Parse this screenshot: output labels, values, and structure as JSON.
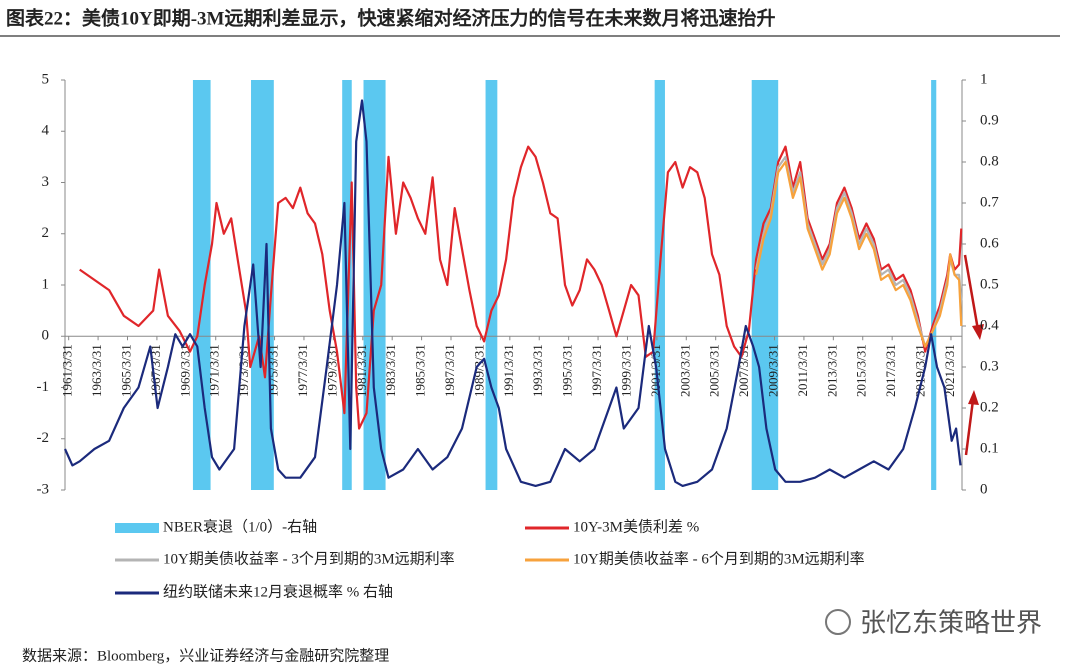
{
  "chart_data": {
    "type": "line",
    "title": "图表22：美债10Y即期-3M远期利差显示，快速紧缩对经济压力的信号在未来数月将迅速抬升",
    "source": "数据来源：Bloomberg，兴业证券经济与金融研究院整理",
    "watermark": "张忆东策略世界",
    "legend": "bottom",
    "xlim": [
      1961,
      2022
    ],
    "xticks": [
      {
        "value": 1961.25,
        "label": "1961/3/31"
      },
      {
        "value": 1963.25,
        "label": "1963/3/31"
      },
      {
        "value": 1965.25,
        "label": "1965/3/31"
      },
      {
        "value": 1967.25,
        "label": "1967/3/31"
      },
      {
        "value": 1969.25,
        "label": "1969/3/31"
      },
      {
        "value": 1971.25,
        "label": "1971/3/31"
      },
      {
        "value": 1973.25,
        "label": "1973/3/31"
      },
      {
        "value": 1975.25,
        "label": "1975/3/31"
      },
      {
        "value": 1977.25,
        "label": "1977/3/31"
      },
      {
        "value": 1979.25,
        "label": "1979/3/31"
      },
      {
        "value": 1981.25,
        "label": "1981/3/31"
      },
      {
        "value": 1983.25,
        "label": "1983/3/31"
      },
      {
        "value": 1985.25,
        "label": "1985/3/31"
      },
      {
        "value": 1987.25,
        "label": "1987/3/31"
      },
      {
        "value": 1989.25,
        "label": "1989/3/31"
      },
      {
        "value": 1991.25,
        "label": "1991/3/31"
      },
      {
        "value": 1993.25,
        "label": "1993/3/31"
      },
      {
        "value": 1995.25,
        "label": "1995/3/31"
      },
      {
        "value": 1997.25,
        "label": "1997/3/31"
      },
      {
        "value": 1999.25,
        "label": "1999/3/31"
      },
      {
        "value": 2001.25,
        "label": "2001/3/31"
      },
      {
        "value": 2003.25,
        "label": "2003/3/31"
      },
      {
        "value": 2005.25,
        "label": "2005/3/31"
      },
      {
        "value": 2007.25,
        "label": "2007/3/31"
      },
      {
        "value": 2009.25,
        "label": "2009/3/31"
      },
      {
        "value": 2011.25,
        "label": "2011/3/31"
      },
      {
        "value": 2013.25,
        "label": "2013/3/31"
      },
      {
        "value": 2015.25,
        "label": "2015/3/31"
      },
      {
        "value": 2017.25,
        "label": "2017/3/31"
      },
      {
        "value": 2019.25,
        "label": "2019/3/31"
      },
      {
        "value": 2021.25,
        "label": "2021/3/31"
      }
    ],
    "ylim": [
      -3,
      5
    ],
    "yticks": [
      -3,
      -2,
      -1,
      0,
      1,
      2,
      3,
      4,
      5
    ],
    "y2lim": [
      0,
      1
    ],
    "y2ticks": [
      0,
      0.1,
      0.2,
      0.3,
      0.4,
      0.5,
      0.6,
      0.7,
      0.8,
      0.9,
      1
    ],
    "recessions": {
      "name": "NBER衰退（1/0）-右轴",
      "color": "#5bc8f0",
      "periods": [
        [
          1969.7,
          1970.9
        ],
        [
          1973.65,
          1975.2
        ],
        [
          1979.85,
          1980.5
        ],
        [
          1981.3,
          1982.8
        ],
        [
          1989.6,
          1990.4
        ],
        [
          2001.1,
          2001.8
        ],
        [
          2007.7,
          2009.5
        ],
        [
          2019.9,
          2020.25
        ]
      ]
    },
    "series": [
      {
        "name": "10Y-3M美债利差 %",
        "color": "#e0262a",
        "x": [
          1962,
          1963,
          1964,
          1965,
          1966,
          1967,
          1967.4,
          1968,
          1968.8,
          1969.5,
          1970,
          1970.5,
          1971,
          1971.3,
          1971.8,
          1972.3,
          1972.8,
          1973.3,
          1973.6,
          1974.2,
          1974.6,
          1975,
          1975.5,
          1976,
          1976.5,
          1977,
          1977.5,
          1978,
          1978.5,
          1979,
          1979.5,
          1980,
          1980.5,
          1980.8,
          1981,
          1981.5,
          1982,
          1982.5,
          1983,
          1983.5,
          1984,
          1984.5,
          1985,
          1985.5,
          1986,
          1986.5,
          1987,
          1987.5,
          1988,
          1988.5,
          1989,
          1989.5,
          1990,
          1990.5,
          1991,
          1991.5,
          1992,
          1992.5,
          1993,
          1993.5,
          1994,
          1994.5,
          1995,
          1995.5,
          1996,
          1996.5,
          1997,
          1997.5,
          1998,
          1998.5,
          1999,
          1999.5,
          2000,
          2000.5,
          2001,
          2001.5,
          2002,
          2002.5,
          2003,
          2003.5,
          2004,
          2004.5,
          2005,
          2005.5,
          2006,
          2006.5,
          2007,
          2007.5,
          2008,
          2008.5,
          2009,
          2009.5,
          2010,
          2010.5,
          2011,
          2011.5,
          2012,
          2012.5,
          2013,
          2013.5,
          2014,
          2014.5,
          2015,
          2015.5,
          2016,
          2016.5,
          2017,
          2017.5,
          2018,
          2018.5,
          2019,
          2019.5,
          2020,
          2020.5,
          2021,
          2021.2,
          2021.5,
          2021.8,
          2021.95
        ],
        "values": [
          1.3,
          1.1,
          0.9,
          0.4,
          0.2,
          0.5,
          1.3,
          0.4,
          0.1,
          -0.3,
          0.0,
          1.0,
          1.8,
          2.6,
          2.0,
          2.3,
          1.4,
          0.5,
          -0.6,
          0.0,
          -0.8,
          0.8,
          2.6,
          2.7,
          2.5,
          2.9,
          2.4,
          2.2,
          1.6,
          0.5,
          -0.3,
          -1.5,
          3.0,
          -1.0,
          -1.8,
          -1.5,
          0.5,
          1.0,
          3.5,
          2.0,
          3.0,
          2.7,
          2.3,
          2.0,
          3.1,
          1.5,
          1.0,
          2.5,
          1.7,
          0.9,
          0.2,
          -0.1,
          0.5,
          0.8,
          1.5,
          2.7,
          3.3,
          3.7,
          3.5,
          3.0,
          2.4,
          2.3,
          1.0,
          0.6,
          0.9,
          1.5,
          1.3,
          1.0,
          0.5,
          0.0,
          0.5,
          1.0,
          0.8,
          -0.4,
          -0.3,
          1.5,
          3.2,
          3.4,
          2.9,
          3.3,
          3.2,
          2.7,
          1.6,
          1.2,
          0.2,
          -0.2,
          -0.4,
          0.1,
          1.5,
          2.2,
          2.5,
          3.4,
          3.7,
          2.9,
          3.4,
          2.3,
          1.9,
          1.5,
          1.8,
          2.6,
          2.9,
          2.5,
          1.9,
          2.2,
          1.9,
          1.3,
          1.4,
          1.1,
          1.2,
          0.9,
          0.4,
          -0.3,
          0.2,
          0.6,
          1.2,
          1.6,
          1.3,
          1.4,
          2.1
        ]
      },
      {
        "name": "10Y期美债收益率 - 3个月到期的3M远期利率",
        "color": "#b4b4b4",
        "x": [
          2008,
          2008.5,
          2009,
          2009.5,
          2010,
          2010.5,
          2011,
          2011.5,
          2012,
          2012.5,
          2013,
          2013.5,
          2014,
          2014.5,
          2015,
          2015.5,
          2016,
          2016.5,
          2017,
          2017.5,
          2018,
          2018.5,
          2019,
          2019.5,
          2020,
          2020.5,
          2021,
          2021.2,
          2021.5,
          2021.8,
          2021.95
        ],
        "values": [
          1.3,
          2.0,
          2.4,
          3.3,
          3.5,
          2.8,
          3.2,
          2.2,
          1.8,
          1.4,
          1.7,
          2.5,
          2.8,
          2.4,
          1.8,
          2.1,
          1.8,
          1.2,
          1.3,
          1.0,
          1.1,
          0.8,
          0.3,
          -0.2,
          0.1,
          0.5,
          1.1,
          1.5,
          1.2,
          1.2,
          0.7
        ]
      },
      {
        "name": "10Y期美债收益率 - 6个月到期的3M远期利率",
        "color": "#f7a23c",
        "x": [
          2008,
          2008.5,
          2009,
          2009.5,
          2010,
          2010.5,
          2011,
          2011.5,
          2012,
          2012.5,
          2013,
          2013.5,
          2014,
          2014.5,
          2015,
          2015.5,
          2016,
          2016.5,
          2017,
          2017.5,
          2018,
          2018.5,
          2019,
          2019.5,
          2020,
          2020.5,
          2021,
          2021.2,
          2021.5,
          2021.8,
          2021.95
        ],
        "values": [
          1.2,
          1.9,
          2.3,
          3.2,
          3.4,
          2.7,
          3.1,
          2.1,
          1.7,
          1.3,
          1.6,
          2.4,
          2.7,
          2.3,
          1.7,
          2.0,
          1.7,
          1.1,
          1.2,
          0.9,
          1.0,
          0.7,
          0.2,
          -0.2,
          0.1,
          0.4,
          1.0,
          1.6,
          1.2,
          1.1,
          0.2
        ]
      },
      {
        "name": "纽约联储未来12月衰退概率 % 右轴",
        "color": "#1b2a7c",
        "axis": "y2",
        "x": [
          1961,
          1961.5,
          1962,
          1963,
          1964,
          1965,
          1966,
          1966.8,
          1967.3,
          1968,
          1968.5,
          1969,
          1969.5,
          1970,
          1970.5,
          1971,
          1971.5,
          1972.5,
          1973.2,
          1973.8,
          1974.3,
          1974.7,
          1975,
          1975.5,
          1976,
          1977,
          1978,
          1978.8,
          1979.5,
          1980,
          1980.4,
          1980.8,
          1981.2,
          1981.5,
          1982,
          1982.5,
          1983,
          1984,
          1985,
          1986,
          1987,
          1988,
          1989,
          1989.5,
          1990,
          1990.5,
          1991,
          1992,
          1993,
          1994,
          1995,
          1996,
          1997,
          1998,
          1998.5,
          1999,
          2000,
          2000.7,
          2001.2,
          2001.8,
          2002.5,
          2003,
          2004,
          2005,
          2006,
          2006.8,
          2007.3,
          2007.8,
          2008.2,
          2008.7,
          2009.3,
          2010,
          2011,
          2012,
          2013,
          2014,
          2015,
          2016,
          2017,
          2018,
          2018.8,
          2019.5,
          2019.9,
          2020.3,
          2020.8,
          2021.3,
          2021.6,
          2021.9
        ],
        "values": [
          0.1,
          0.06,
          0.07,
          0.1,
          0.12,
          0.2,
          0.25,
          0.35,
          0.2,
          0.3,
          0.38,
          0.35,
          0.38,
          0.35,
          0.2,
          0.08,
          0.05,
          0.1,
          0.4,
          0.55,
          0.3,
          0.6,
          0.15,
          0.05,
          0.03,
          0.03,
          0.08,
          0.3,
          0.5,
          0.7,
          0.1,
          0.85,
          0.95,
          0.85,
          0.25,
          0.1,
          0.03,
          0.05,
          0.1,
          0.05,
          0.08,
          0.15,
          0.3,
          0.32,
          0.25,
          0.2,
          0.1,
          0.02,
          0.01,
          0.02,
          0.1,
          0.07,
          0.1,
          0.2,
          0.25,
          0.15,
          0.2,
          0.4,
          0.3,
          0.1,
          0.02,
          0.01,
          0.02,
          0.05,
          0.15,
          0.3,
          0.4,
          0.35,
          0.3,
          0.15,
          0.05,
          0.02,
          0.02,
          0.03,
          0.05,
          0.03,
          0.05,
          0.07,
          0.05,
          0.1,
          0.2,
          0.3,
          0.38,
          0.3,
          0.25,
          0.12,
          0.15,
          0.06
        ]
      }
    ]
  }
}
